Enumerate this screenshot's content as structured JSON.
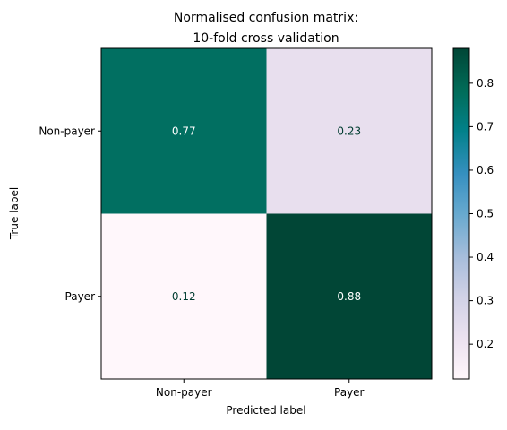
{
  "chart_data": {
    "type": "heatmap",
    "title_lines": [
      "Normalised confusion matrix:",
      "10-fold cross validation"
    ],
    "xlabel": "Predicted label",
    "ylabel": "True label",
    "x_categories": [
      "Non-payer",
      "Payer"
    ],
    "y_categories": [
      "Non-payer",
      "Payer"
    ],
    "values": [
      [
        0.77,
        0.23
      ],
      [
        0.12,
        0.88
      ]
    ],
    "cell_labels": [
      [
        "0.77",
        "0.23"
      ],
      [
        "0.12",
        "0.88"
      ]
    ],
    "colormap": "PuBuGn",
    "color_range": [
      0.12,
      0.88
    ],
    "colorbar_ticks": [
      0.2,
      0.3,
      0.4,
      0.5,
      0.6,
      0.7,
      0.8
    ],
    "colorbar_tick_labels": [
      "0.2",
      "0.3",
      "0.4",
      "0.5",
      "0.6",
      "0.7",
      "0.8"
    ],
    "text_color_light": "#ffffff",
    "text_color_dark": "#003c30"
  }
}
